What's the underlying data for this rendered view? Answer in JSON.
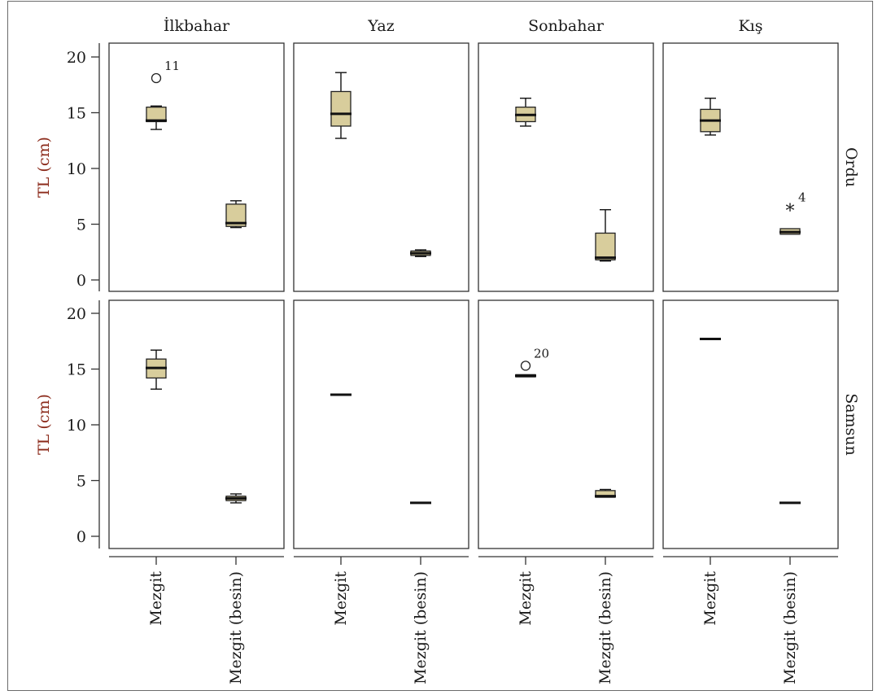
{
  "chart_data": {
    "type": "boxplot",
    "y_axis_label": "TL (cm)",
    "ylim": [
      0,
      20
    ],
    "y_ticks": [
      0,
      5,
      10,
      15,
      20
    ],
    "columns": [
      "İlkbahar",
      "Yaz",
      "Sonbahar",
      "Kış"
    ],
    "rows": [
      "Ordu",
      "Samsun"
    ],
    "categories": [
      "Mezgit",
      "Mezgit (besin)"
    ],
    "colors": {
      "box_fill": "#d8cd9c",
      "stroke": "#222222",
      "axis_title": "#8b2a1a"
    },
    "panels": [
      {
        "row": "Ordu",
        "column": "İlkbahar",
        "boxes": [
          {
            "category": "Mezgit",
            "min": 13.5,
            "q1": 14.2,
            "median": 14.3,
            "q3": 15.5,
            "max": 15.6,
            "outliers": [
              {
                "value": 18.1,
                "label": "11",
                "marker": "circle"
              }
            ]
          },
          {
            "category": "Mezgit (besin)",
            "min": 4.7,
            "q1": 4.8,
            "median": 5.1,
            "q3": 6.8,
            "max": 7.1,
            "outliers": []
          }
        ]
      },
      {
        "row": "Ordu",
        "column": "Yaz",
        "boxes": [
          {
            "category": "Mezgit",
            "min": 12.7,
            "q1": 13.8,
            "median": 14.9,
            "q3": 16.9,
            "max": 18.6,
            "outliers": []
          },
          {
            "category": "Mezgit (besin)",
            "min": 2.1,
            "q1": 2.2,
            "median": 2.4,
            "q3": 2.6,
            "max": 2.7,
            "outliers": []
          }
        ]
      },
      {
        "row": "Ordu",
        "column": "Sonbahar",
        "boxes": [
          {
            "category": "Mezgit",
            "min": 13.8,
            "q1": 14.2,
            "median": 14.8,
            "q3": 15.5,
            "max": 16.3,
            "outliers": []
          },
          {
            "category": "Mezgit (besin)",
            "min": 1.7,
            "q1": 1.8,
            "median": 2.0,
            "q3": 4.2,
            "max": 6.3,
            "outliers": []
          }
        ]
      },
      {
        "row": "Ordu",
        "column": "Kış",
        "boxes": [
          {
            "category": "Mezgit",
            "min": 13.0,
            "q1": 13.3,
            "median": 14.3,
            "q3": 15.3,
            "max": 16.3,
            "outliers": []
          },
          {
            "category": "Mezgit (besin)",
            "min": 4.1,
            "q1": 4.1,
            "median": 4.3,
            "q3": 4.6,
            "max": 4.6,
            "outliers": [
              {
                "value": 6.3,
                "label": "4",
                "marker": "star"
              }
            ]
          }
        ]
      },
      {
        "row": "Samsun",
        "column": "İlkbahar",
        "boxes": [
          {
            "category": "Mezgit",
            "min": 13.2,
            "q1": 14.2,
            "median": 15.1,
            "q3": 15.9,
            "max": 16.7,
            "outliers": []
          },
          {
            "category": "Mezgit (besin)",
            "min": 3.0,
            "q1": 3.2,
            "median": 3.4,
            "q3": 3.6,
            "max": 3.8,
            "outliers": []
          }
        ]
      },
      {
        "row": "Samsun",
        "column": "Yaz",
        "boxes": [
          {
            "category": "Mezgit",
            "min": 12.7,
            "q1": 12.7,
            "median": 12.7,
            "q3": 12.7,
            "max": 12.7,
            "outliers": []
          },
          {
            "category": "Mezgit (besin)",
            "min": 3.0,
            "q1": 3.0,
            "median": 3.0,
            "q3": 3.0,
            "max": 3.0,
            "outliers": []
          }
        ]
      },
      {
        "row": "Samsun",
        "column": "Sonbahar",
        "boxes": [
          {
            "category": "Mezgit",
            "min": 14.3,
            "q1": 14.3,
            "median": 14.4,
            "q3": 14.5,
            "max": 14.5,
            "outliers": [
              {
                "value": 15.3,
                "label": "20",
                "marker": "circle"
              }
            ]
          },
          {
            "category": "Mezgit (besin)",
            "min": 3.5,
            "q1": 3.5,
            "median": 3.6,
            "q3": 4.1,
            "max": 4.2,
            "outliers": []
          }
        ]
      },
      {
        "row": "Samsun",
        "column": "Kış",
        "boxes": [
          {
            "category": "Mezgit",
            "min": 17.7,
            "q1": 17.7,
            "median": 17.7,
            "q3": 17.7,
            "max": 17.7,
            "outliers": []
          },
          {
            "category": "Mezgit (besin)",
            "min": 3.0,
            "q1": 3.0,
            "median": 3.0,
            "q3": 3.0,
            "max": 3.0,
            "outliers": []
          }
        ]
      }
    ]
  }
}
